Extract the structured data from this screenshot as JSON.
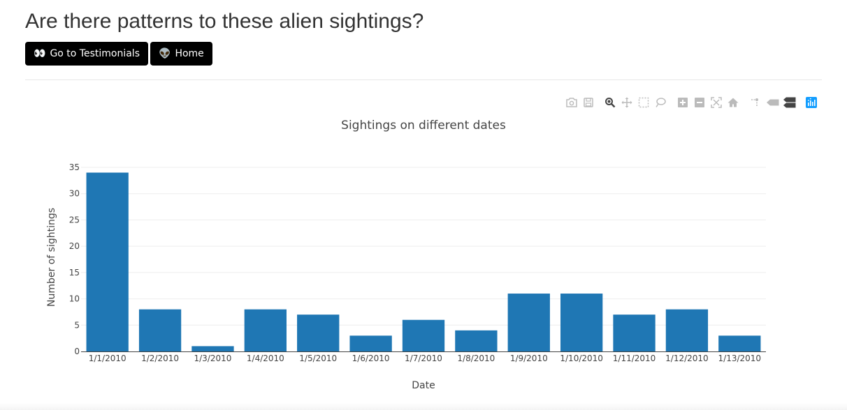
{
  "page": {
    "title": "Are there patterns to these alien sightings?"
  },
  "nav": {
    "testimonials_emoji": "👀",
    "testimonials_label": "Go to Testimonials",
    "home_emoji": "👽",
    "home_label": "Home"
  },
  "modebar": {
    "icons": [
      "camera-icon",
      "save-icon",
      "zoom-icon",
      "pan-icon",
      "box-select-icon",
      "lasso-select-icon",
      "zoom-in-icon",
      "zoom-out-icon",
      "autoscale-icon",
      "reset-axes-icon",
      "spike-lines-icon",
      "hover-closest-icon",
      "hover-compare-icon",
      "plotly-logo-icon"
    ],
    "active_color": "#444444",
    "inactive_color": "#bbbbbb",
    "logo_color": "#119dff"
  },
  "chart_data": {
    "type": "bar",
    "title": "Sightings on different dates",
    "xlabel": "Date",
    "ylabel": "Number of sightings",
    "categories": [
      "1/1/2010",
      "1/2/2010",
      "1/3/2010",
      "1/4/2010",
      "1/5/2010",
      "1/6/2010",
      "1/7/2010",
      "1/8/2010",
      "1/9/2010",
      "1/10/2010",
      "1/11/2010",
      "1/12/2010",
      "1/13/2010"
    ],
    "values": [
      34,
      8,
      1,
      8,
      7,
      3,
      6,
      4,
      11,
      11,
      7,
      8,
      3
    ],
    "ylim": [
      0,
      35
    ],
    "yticks": [
      0,
      5,
      10,
      15,
      20,
      25,
      30,
      35
    ],
    "grid": true,
    "bar_color": "#1f77b4"
  }
}
